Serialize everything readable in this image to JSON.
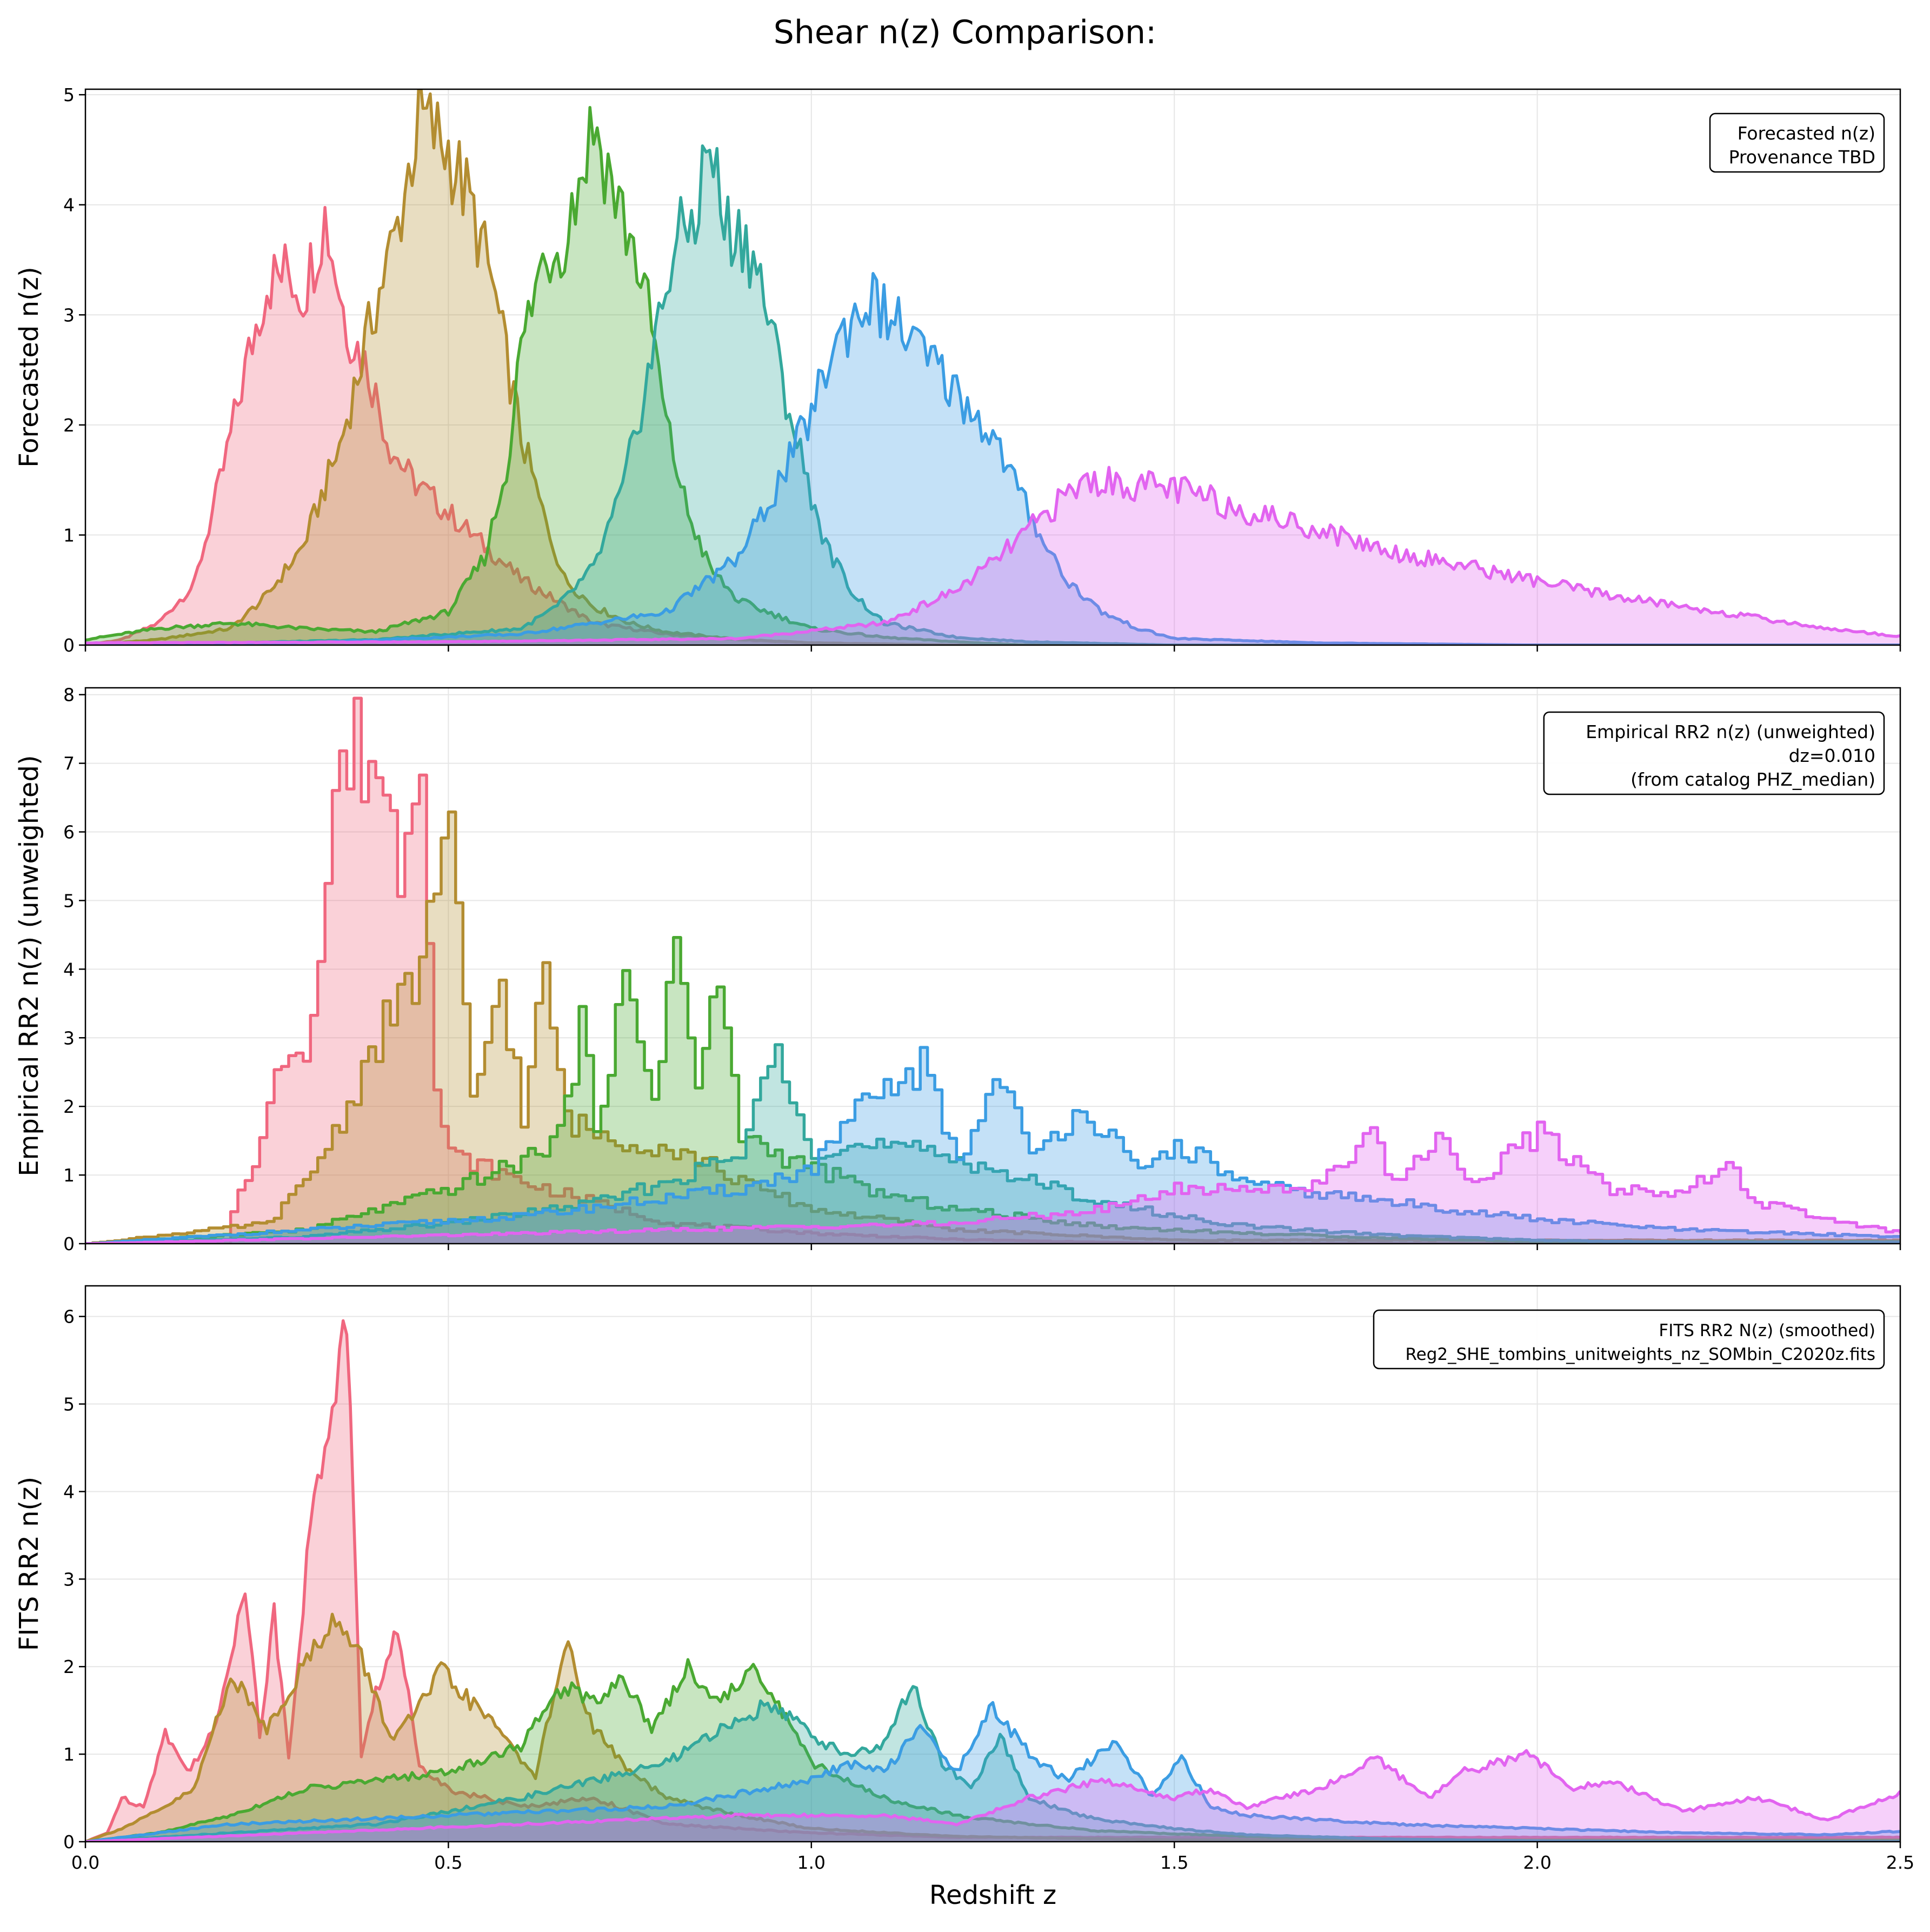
{
  "figure": {
    "title": "Shear n(z) Comparison:"
  },
  "colors": {
    "bin1": "#f0677f",
    "bin2": "#b38d31",
    "bin3": "#4aa932",
    "bin4": "#33a89d",
    "bin5": "#3b9de3",
    "bin6": "#e264f0",
    "grid": "#e6e6e6",
    "axis": "#000000"
  },
  "chart_data": [
    {
      "type": "area",
      "panel": "top",
      "ylabel": "Forecasted n(z)",
      "xlim": [
        0.0,
        2.5
      ],
      "ylim": [
        0,
        5.05
      ],
      "yticks": [
        "0",
        "1",
        "2",
        "3",
        "4",
        "5"
      ],
      "xticks": [
        "0.0",
        "0.5",
        "1.0",
        "1.5",
        "2.0",
        "2.5"
      ],
      "grid": true,
      "legend_box": {
        "placement": "top-right",
        "lines": [
          "Forecasted n(z)",
          "Provenance TBD"
        ]
      },
      "series": [
        {
          "color_key": "bin1",
          "peak_x": 0.33,
          "peak_y": 3.9,
          "x": [
            0.0,
            0.05,
            0.1,
            0.15,
            0.19,
            0.22,
            0.25,
            0.28,
            0.3,
            0.33,
            0.36,
            0.39,
            0.42,
            0.45,
            0.5,
            0.55,
            0.6,
            0.65,
            0.7,
            0.8,
            0.9,
            1.0,
            1.2
          ],
          "y": [
            0,
            0.05,
            0.2,
            0.55,
            1.6,
            2.5,
            3.3,
            3.4,
            3.2,
            3.9,
            2.9,
            2.5,
            1.8,
            1.5,
            1.2,
            0.9,
            0.6,
            0.4,
            0.2,
            0.1,
            0.05,
            0.02,
            0
          ]
        },
        {
          "color_key": "bin2",
          "peak_x": 0.46,
          "peak_y": 4.8,
          "x": [
            0.0,
            0.1,
            0.2,
            0.25,
            0.3,
            0.35,
            0.4,
            0.43,
            0.46,
            0.5,
            0.53,
            0.56,
            0.6,
            0.63,
            0.66,
            0.7,
            0.75,
            0.8,
            0.9,
            1.0,
            1.2
          ],
          "y": [
            0,
            0.05,
            0.15,
            0.45,
            0.9,
            1.8,
            3.1,
            3.8,
            4.8,
            4.5,
            4.0,
            3.3,
            1.9,
            1.2,
            0.6,
            0.35,
            0.2,
            0.12,
            0.05,
            0.02,
            0
          ]
        },
        {
          "color_key": "bin3",
          "peak_x": 0.7,
          "peak_y": 4.75,
          "x": [
            0.0,
            0.1,
            0.2,
            0.3,
            0.4,
            0.5,
            0.55,
            0.58,
            0.6,
            0.63,
            0.66,
            0.7,
            0.73,
            0.76,
            0.78,
            0.8,
            0.83,
            0.86,
            0.9,
            1.0,
            1.1,
            1.2,
            1.3
          ],
          "y": [
            0.05,
            0.15,
            0.2,
            0.15,
            0.12,
            0.3,
            0.8,
            1.6,
            2.7,
            3.5,
            3.7,
            4.75,
            4.1,
            3.5,
            2.9,
            2.0,
            1.2,
            0.7,
            0.4,
            0.15,
            0.07,
            0.03,
            0
          ]
        },
        {
          "color_key": "bin4",
          "peak_x": 0.86,
          "peak_y": 4.6,
          "x": [
            0.0,
            0.2,
            0.4,
            0.6,
            0.65,
            0.7,
            0.74,
            0.78,
            0.81,
            0.84,
            0.86,
            0.88,
            0.91,
            0.93,
            0.96,
            0.99,
            1.02,
            1.06,
            1.1,
            1.2,
            1.3,
            1.5
          ],
          "y": [
            0,
            0.02,
            0.05,
            0.15,
            0.35,
            0.7,
            1.4,
            2.6,
            3.6,
            3.9,
            4.6,
            3.8,
            3.7,
            3.3,
            2.4,
            1.6,
            0.9,
            0.45,
            0.2,
            0.07,
            0.03,
            0
          ]
        },
        {
          "color_key": "bin5",
          "peak_x": 1.08,
          "peak_y": 3.15,
          "x": [
            0.0,
            0.3,
            0.6,
            0.8,
            0.9,
            0.95,
            1.0,
            1.03,
            1.06,
            1.08,
            1.12,
            1.16,
            1.2,
            1.25,
            1.3,
            1.35,
            1.4,
            1.45,
            1.5,
            1.7,
            2.0
          ],
          "y": [
            0,
            0.02,
            0.1,
            0.3,
            0.8,
            1.4,
            2.1,
            2.7,
            3.0,
            3.15,
            2.9,
            2.6,
            2.3,
            1.9,
            1.2,
            0.6,
            0.3,
            0.15,
            0.06,
            0.02,
            0
          ]
        },
        {
          "color_key": "bin6",
          "peak_x": 1.38,
          "peak_y": 1.5,
          "x": [
            0.0,
            0.5,
            0.9,
            1.1,
            1.2,
            1.25,
            1.3,
            1.35,
            1.38,
            1.45,
            1.5,
            1.6,
            1.7,
            1.8,
            1.9,
            2.0,
            2.1,
            2.2,
            2.3,
            2.4,
            2.5
          ],
          "y": [
            0.02,
            0.03,
            0.06,
            0.2,
            0.5,
            0.75,
            1.05,
            1.35,
            1.5,
            1.45,
            1.42,
            1.22,
            1.05,
            0.85,
            0.72,
            0.58,
            0.45,
            0.35,
            0.25,
            0.15,
            0.08
          ]
        }
      ]
    },
    {
      "type": "area",
      "panel": "middle",
      "ylabel": "Empirical RR2 n(z) (unweighted)",
      "xlim": [
        0.0,
        2.5
      ],
      "ylim": [
        0,
        8.1
      ],
      "yticks": [
        "0",
        "1",
        "2",
        "3",
        "4",
        "5",
        "6",
        "7",
        "8"
      ],
      "xticks": [
        "0.0",
        "0.5",
        "1.0",
        "1.5",
        "2.0",
        "2.5"
      ],
      "grid": true,
      "legend_box": {
        "placement": "top-right",
        "lines": [
          "Empirical RR2 n(z) (unweighted)",
          "dz=0.010",
          "(from catalog PHZ_median)"
        ]
      },
      "series": [
        {
          "color_key": "bin1",
          "peak_x": 0.46,
          "peak_y": 7.7,
          "x": [
            0.0,
            0.19,
            0.2,
            0.24,
            0.27,
            0.3,
            0.32,
            0.34,
            0.37,
            0.4,
            0.43,
            0.46,
            0.48,
            0.5,
            0.55,
            0.6,
            0.7,
            0.8,
            1.0,
            1.2,
            1.5
          ],
          "y": [
            0,
            0,
            0.5,
            1.5,
            2.8,
            3.0,
            4.1,
            6.6,
            7.2,
            7.0,
            5.6,
            7.7,
            2.2,
            1.3,
            1.1,
            0.9,
            0.6,
            0.3,
            0.15,
            0.06,
            0
          ]
        },
        {
          "color_key": "bin2",
          "peak_x": 0.5,
          "peak_y": 5.8,
          "x": [
            0.0,
            0.25,
            0.3,
            0.35,
            0.4,
            0.45,
            0.48,
            0.5,
            0.53,
            0.57,
            0.6,
            0.63,
            0.66,
            0.7,
            0.75,
            0.8,
            0.85,
            0.9,
            1.0,
            1.2,
            1.5
          ],
          "y": [
            0,
            0.3,
            0.9,
            1.8,
            3.0,
            3.8,
            5.2,
            5.8,
            2.0,
            3.9,
            1.8,
            3.9,
            1.8,
            1.6,
            1.5,
            1.4,
            1.2,
            0.9,
            0.5,
            0.2,
            0.05
          ]
        },
        {
          "color_key": "bin3",
          "peak_x": 0.81,
          "peak_y": 4.4,
          "x": [
            0.0,
            0.3,
            0.4,
            0.5,
            0.6,
            0.65,
            0.68,
            0.7,
            0.74,
            0.78,
            0.81,
            0.84,
            0.87,
            0.9,
            0.95,
            1.0,
            1.1,
            1.2,
            1.4,
            1.6,
            1.8,
            2.0
          ],
          "y": [
            0,
            0.2,
            0.5,
            0.8,
            1.2,
            1.6,
            3.1,
            1.8,
            3.7,
            2.2,
            4.4,
            2.3,
            3.8,
            1.6,
            1.3,
            1.1,
            0.7,
            0.5,
            0.25,
            0.15,
            0.08,
            0.03
          ]
        },
        {
          "color_key": "bin4",
          "peak_x": 0.95,
          "peak_y": 2.9,
          "x": [
            0.0,
            0.3,
            0.5,
            0.7,
            0.8,
            0.9,
            0.95,
            1.0,
            1.05,
            1.1,
            1.2,
            1.3,
            1.4,
            1.5,
            1.6,
            1.8,
            2.0,
            2.2
          ],
          "y": [
            0,
            0.1,
            0.3,
            0.6,
            0.9,
            1.3,
            2.9,
            1.4,
            1.4,
            1.4,
            1.25,
            0.9,
            0.6,
            0.4,
            0.25,
            0.12,
            0.05,
            0.02
          ]
        },
        {
          "color_key": "bin5",
          "peak_x": 1.26,
          "peak_y": 2.55,
          "x": [
            0.0,
            0.3,
            0.6,
            0.9,
            1.0,
            1.05,
            1.15,
            1.2,
            1.26,
            1.3,
            1.37,
            1.45,
            1.5,
            1.6,
            1.8,
            2.0,
            2.2,
            2.5
          ],
          "y": [
            0,
            0.2,
            0.4,
            0.8,
            1.1,
            1.8,
            2.6,
            1.2,
            2.55,
            1.2,
            2.05,
            1.0,
            1.45,
            0.85,
            0.6,
            0.35,
            0.2,
            0.1
          ]
        },
        {
          "color_key": "bin6",
          "peak_x": 1.87,
          "peak_y": 1.7,
          "x": [
            0.0,
            0.4,
            0.8,
            1.0,
            1.2,
            1.4,
            1.5,
            1.6,
            1.7,
            1.77,
            1.8,
            1.87,
            1.9,
            2.0,
            2.1,
            2.2,
            2.26,
            2.3,
            2.4,
            2.5
          ],
          "y": [
            0,
            0.1,
            0.2,
            0.25,
            0.3,
            0.5,
            0.8,
            0.8,
            0.85,
            1.7,
            0.85,
            1.7,
            0.85,
            1.6,
            0.8,
            0.75,
            1.15,
            0.6,
            0.35,
            0.15
          ]
        }
      ]
    },
    {
      "type": "area",
      "panel": "bottom",
      "ylabel": "FITS RR2 n(z)",
      "xlabel": "Redshift z",
      "xlim": [
        0.0,
        2.5
      ],
      "ylim": [
        0,
        6.35
      ],
      "yticks": [
        "0",
        "1",
        "2",
        "3",
        "4",
        "5",
        "6"
      ],
      "xticks": [
        "0.0",
        "0.5",
        "1.0",
        "1.5",
        "2.0",
        "2.5"
      ],
      "grid": true,
      "legend_box": {
        "placement": "top-right",
        "lines": [
          "FITS RR2 N(z) (smoothed)",
          "Reg2_SHE_tombins_unitweights_nz_SOMbin_C2020z.fits"
        ]
      },
      "series": [
        {
          "color_key": "bin1",
          "peak_x": 0.36,
          "peak_y": 6.05,
          "x": [
            0.0,
            0.03,
            0.05,
            0.08,
            0.11,
            0.14,
            0.18,
            0.22,
            0.24,
            0.26,
            0.28,
            0.31,
            0.33,
            0.36,
            0.38,
            0.4,
            0.43,
            0.46,
            0.5,
            0.6,
            0.7,
            0.8,
            0.9,
            1.0,
            1.2
          ],
          "y": [
            0,
            0.1,
            0.5,
            0.4,
            1.25,
            0.8,
            1.3,
            3.0,
            1.2,
            2.6,
            1.0,
            3.6,
            4.5,
            6.05,
            1.0,
            1.7,
            2.4,
            0.9,
            0.6,
            0.4,
            0.5,
            0.2,
            0.15,
            0.1,
            0.05
          ]
        },
        {
          "color_key": "bin2",
          "peak_x": 0.34,
          "peak_y": 2.55,
          "x": [
            0.0,
            0.05,
            0.1,
            0.15,
            0.2,
            0.25,
            0.3,
            0.34,
            0.38,
            0.42,
            0.45,
            0.49,
            0.53,
            0.58,
            0.62,
            0.66,
            0.7,
            0.75,
            0.8,
            0.9,
            1.0,
            1.2,
            1.5
          ],
          "y": [
            0,
            0.15,
            0.35,
            0.6,
            1.9,
            1.3,
            2.0,
            2.55,
            2.1,
            1.2,
            1.4,
            1.95,
            1.6,
            1.2,
            0.7,
            2.3,
            1.3,
            0.8,
            0.5,
            0.3,
            0.15,
            0.06,
            0.02
          ]
        },
        {
          "color_key": "bin3",
          "peak_x": 0.83,
          "peak_y": 2.0,
          "x": [
            0.0,
            0.1,
            0.2,
            0.3,
            0.4,
            0.5,
            0.6,
            0.66,
            0.7,
            0.74,
            0.78,
            0.83,
            0.87,
            0.92,
            0.96,
            1.0,
            1.1,
            1.2,
            1.3,
            1.4,
            1.6,
            1.8,
            2.0
          ],
          "y": [
            0,
            0.1,
            0.3,
            0.6,
            0.7,
            0.8,
            1.1,
            1.8,
            1.6,
            1.9,
            1.3,
            2.0,
            1.6,
            1.95,
            1.5,
            0.9,
            0.5,
            0.3,
            0.2,
            0.12,
            0.06,
            0.03,
            0.01
          ]
        },
        {
          "color_key": "bin4",
          "peak_x": 1.14,
          "peak_y": 1.8,
          "x": [
            0.0,
            0.2,
            0.4,
            0.6,
            0.8,
            0.9,
            0.95,
            1.0,
            1.05,
            1.1,
            1.14,
            1.18,
            1.22,
            1.26,
            1.3,
            1.35,
            1.4,
            1.5,
            1.6,
            1.8,
            2.0,
            2.2
          ],
          "y": [
            0,
            0.1,
            0.2,
            0.5,
            0.9,
            1.4,
            1.6,
            1.2,
            1.0,
            1.1,
            1.8,
            0.9,
            0.6,
            1.2,
            0.5,
            0.35,
            0.25,
            0.15,
            0.08,
            0.03,
            0.01,
            0
          ]
        },
        {
          "color_key": "bin5",
          "peak_x": 1.25,
          "peak_y": 1.55,
          "x": [
            0.0,
            0.2,
            0.5,
            0.8,
            1.0,
            1.05,
            1.1,
            1.15,
            1.2,
            1.25,
            1.3,
            1.35,
            1.42,
            1.47,
            1.51,
            1.55,
            1.6,
            1.8,
            2.0,
            2.2,
            2.4,
            2.5
          ],
          "y": [
            0,
            0.2,
            0.3,
            0.4,
            0.7,
            0.9,
            0.8,
            1.3,
            0.8,
            1.55,
            1.0,
            0.7,
            1.15,
            0.5,
            0.95,
            0.4,
            0.3,
            0.2,
            0.15,
            0.1,
            0.08,
            0.12
          ]
        },
        {
          "color_key": "bin6",
          "peak_x": 1.99,
          "peak_y": 1.0,
          "x": [
            0.0,
            0.3,
            0.6,
            0.9,
            1.1,
            1.2,
            1.3,
            1.4,
            1.5,
            1.55,
            1.6,
            1.7,
            1.78,
            1.85,
            1.9,
            1.99,
            2.05,
            2.1,
            2.2,
            2.3,
            2.4,
            2.5
          ],
          "y": [
            0,
            0.1,
            0.2,
            0.3,
            0.3,
            0.2,
            0.5,
            0.7,
            0.5,
            0.6,
            0.4,
            0.6,
            0.95,
            0.5,
            0.8,
            1.0,
            0.6,
            0.7,
            0.35,
            0.5,
            0.25,
            0.55
          ]
        }
      ]
    }
  ]
}
